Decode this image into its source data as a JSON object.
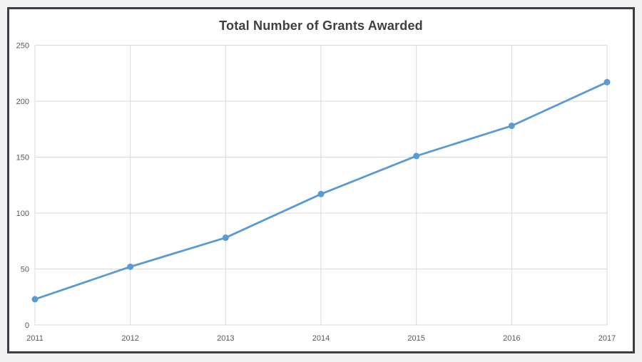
{
  "chart_data": {
    "type": "line",
    "title": "Total Number of Grants Awarded",
    "categories": [
      "2011",
      "2012",
      "2013",
      "2014",
      "2015",
      "2016",
      "2017"
    ],
    "values": [
      23,
      52,
      78,
      117,
      151,
      178,
      217
    ],
    "xlabel": "",
    "ylabel": "",
    "ylim": [
      0,
      250
    ],
    "yticks": [
      0,
      50,
      100,
      150,
      200,
      250
    ],
    "grid": "both",
    "legend_position": "none",
    "colors": {
      "line": "#5b9bd5",
      "marker": "#5b9bd5",
      "gridline": "#d9d9d9",
      "title": "#404040",
      "tick_label": "#595959",
      "frame_border": "#3a3f45",
      "outer_background": "#f2f2f2",
      "plot_background": "#ffffff"
    }
  }
}
